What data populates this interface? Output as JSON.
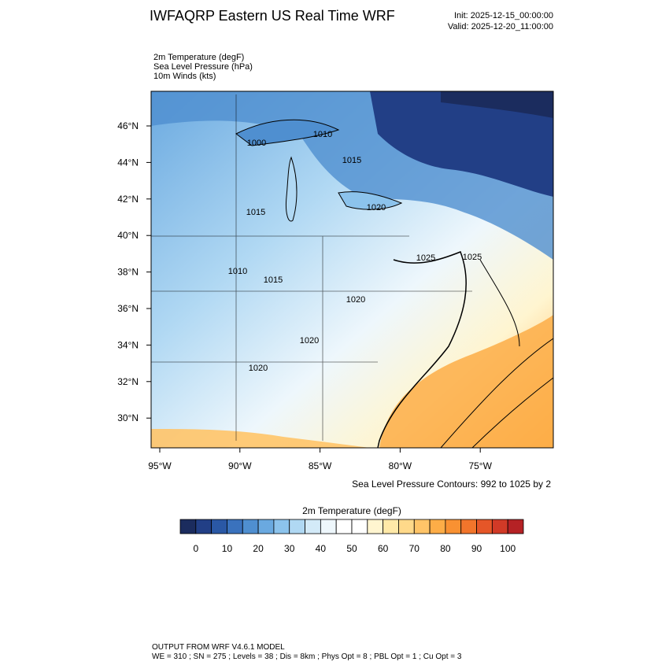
{
  "header": {
    "title": "IWFAQRP Eastern US Real Time WRF",
    "init": "Init: 2025-12-15_00:00:00",
    "valid": "Valid: 2025-12-20_11:00:00"
  },
  "fields": [
    "2m Temperature   (degF)",
    "Sea Level Pressure   (hPa)",
    "10m Winds   (kts)"
  ],
  "map": {
    "lat_labels": [
      "46°N",
      "44°N",
      "42°N",
      "40°N",
      "38°N",
      "36°N",
      "34°N",
      "32°N",
      "30°N"
    ],
    "lon_labels": [
      "95°W",
      "90°W",
      "85°W",
      "80°W",
      "75°W"
    ],
    "contour_labels": [
      "1000",
      "1010",
      "1015",
      "1020",
      "1015",
      "1010",
      "1015",
      "1020",
      "1025",
      "1025",
      "1020",
      "1020"
    ],
    "caption": "Sea Level Pressure Contours: 992 to 1025 by 2"
  },
  "colorbar": {
    "title": "2m Temperature  (degF)",
    "colors": [
      "#1b2c5e",
      "#223f86",
      "#2a58a5",
      "#3a72bd",
      "#4f8fd0",
      "#6aa9e0",
      "#8cc3ec",
      "#b0d8f3",
      "#d3eaf8",
      "#eef7fc",
      "#ffffff",
      "#ffffff",
      "#fff5d0",
      "#ffe9a8",
      "#ffd98a",
      "#ffc468",
      "#fdad47",
      "#f99132",
      "#f2752b",
      "#e55628",
      "#d13a27",
      "#b52225"
    ],
    "labels": [
      0,
      10,
      20,
      30,
      40,
      50,
      60,
      70,
      80,
      90,
      100
    ]
  },
  "footer": [
    "OUTPUT FROM WRF V4.6.1 MODEL",
    "WE = 310 ; SN = 275 ; Levels = 38 ; Dis = 8km ; Phys Opt = 8 ; PBL Opt = 1 ; Cu Opt = 3"
  ]
}
